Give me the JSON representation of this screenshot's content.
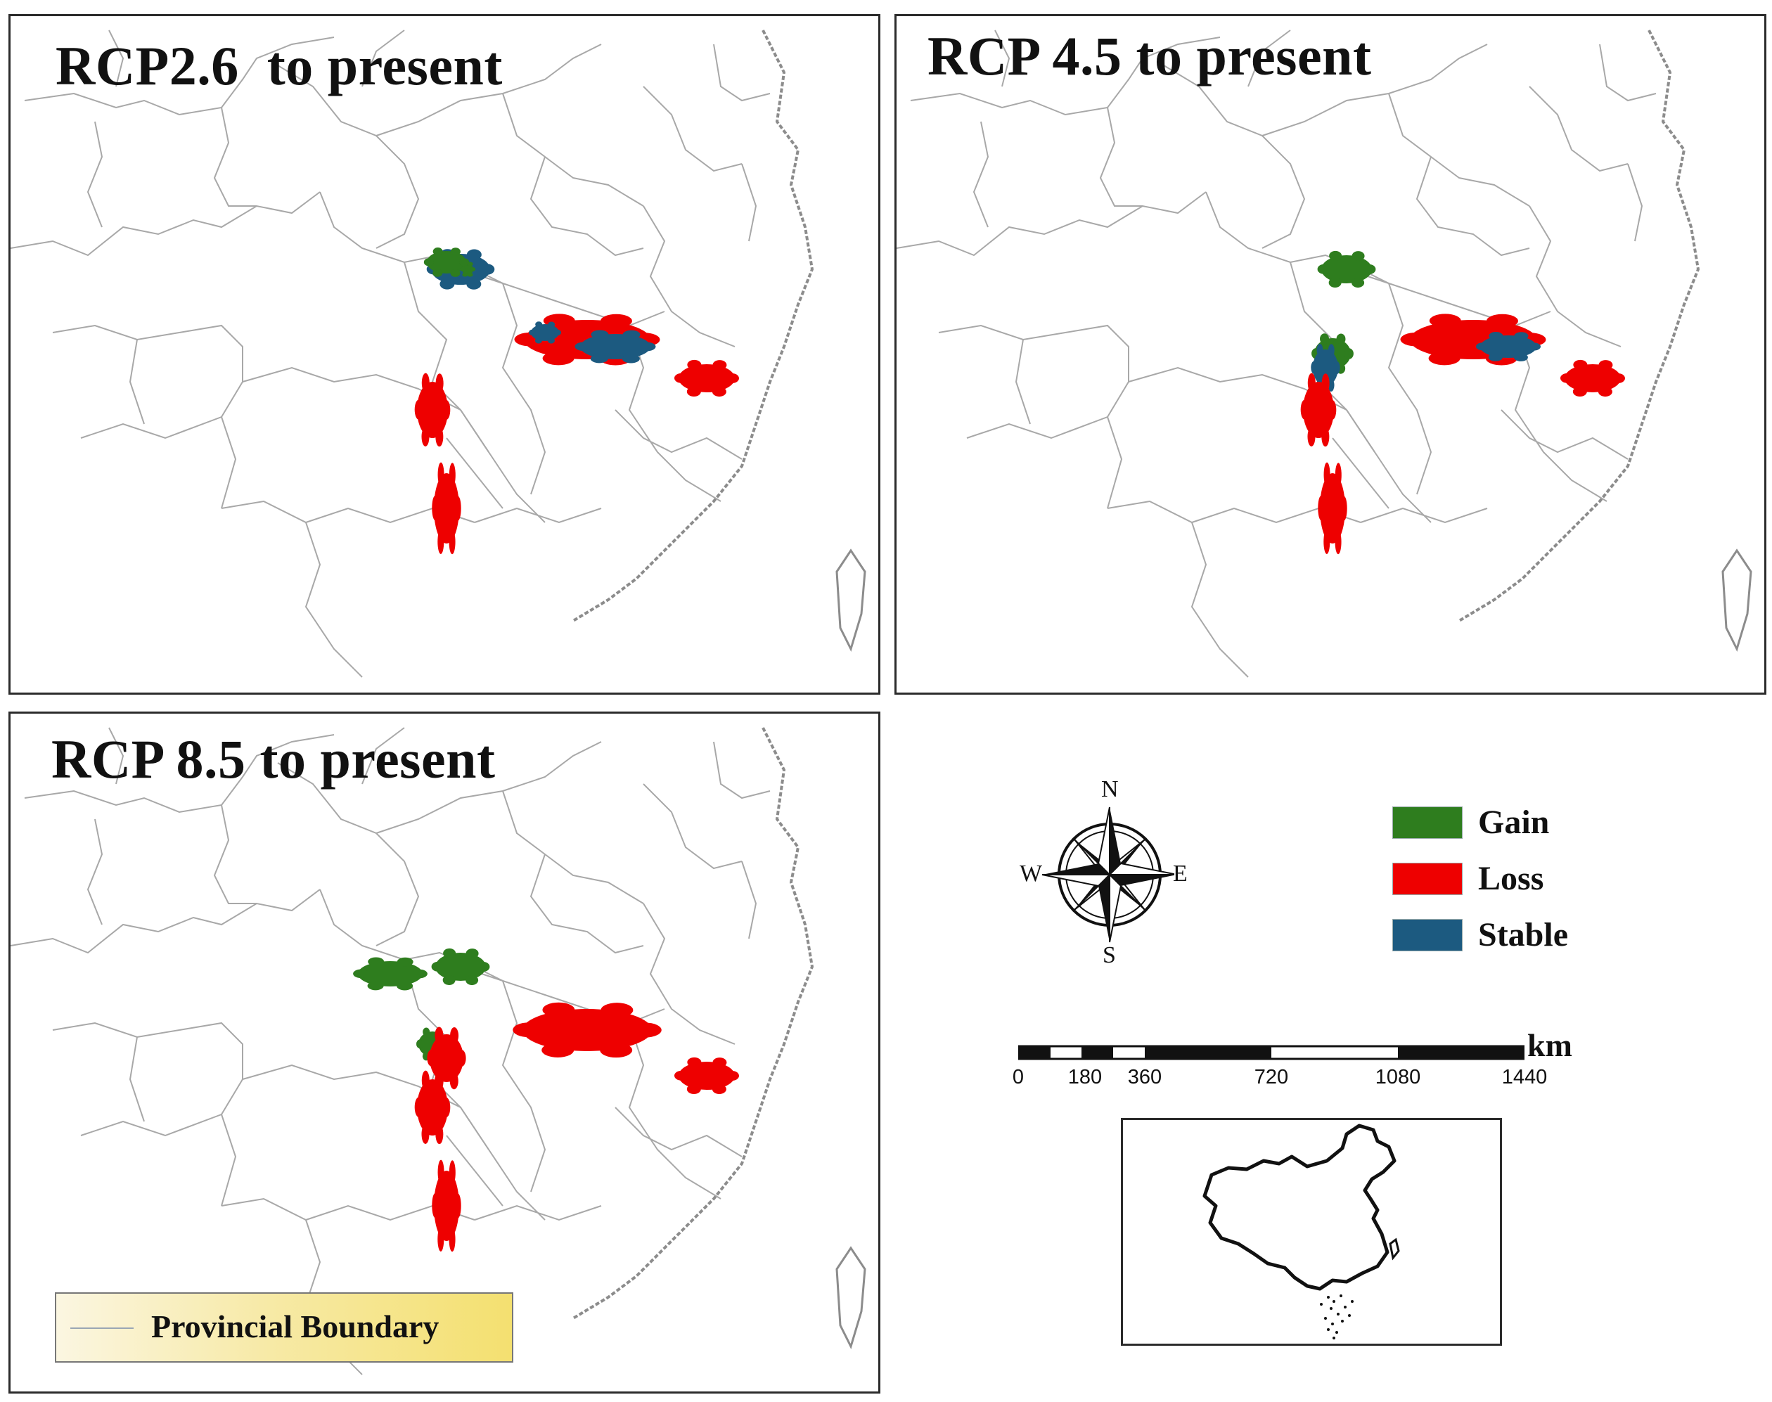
{
  "panels": [
    {
      "id": "rcp26",
      "title": "RCP2.6  to present"
    },
    {
      "id": "rcp45",
      "title": "RCP 4.5 to present"
    },
    {
      "id": "rcp85",
      "title": "RCP 8.5 to present"
    }
  ],
  "legend": {
    "items": [
      {
        "label": "Gain",
        "color": "#2e7d1e"
      },
      {
        "label": "Loss",
        "color": "#ee0000"
      },
      {
        "label": "Stable",
        "color": "#1c5a80"
      }
    ]
  },
  "compass": {
    "n": "N",
    "s": "S",
    "e": "E",
    "w": "W"
  },
  "scale_bar": {
    "unit": "km",
    "ticks": [
      "0",
      "180",
      "360",
      "720",
      "1080",
      "1440"
    ]
  },
  "boundary_legend": {
    "label": "Provincial Boundary"
  },
  "colors": {
    "boundary": "#a8a8a8",
    "coast": "#8c8c8c",
    "gain": "#2e7d1e",
    "loss": "#ee0000",
    "stable": "#1c5a80"
  }
}
